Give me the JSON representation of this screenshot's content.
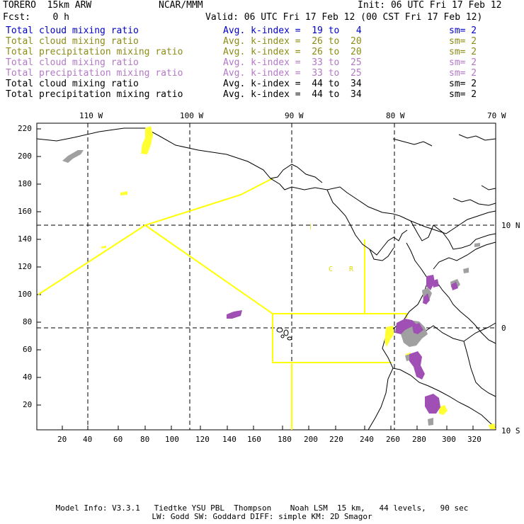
{
  "header": {
    "model": "TORERO  15km ARW",
    "center": "NCAR/MMM",
    "init": "Init: 06 UTC Fri 17 Feb 12",
    "fcst": "Fcst:    0 h",
    "valid": "Valid: 06 UTC Fri 17 Feb 12 (00 CST Fri 17 Feb 12)"
  },
  "legend": [
    {
      "field": "Total cloud mixing ratio",
      "kindex": "Avg. k-index =  19 to   4",
      "sm": "sm= 2",
      "color": "#0000c8"
    },
    {
      "field": "Total cloud mixing ratio",
      "kindex": "Avg. k-index =  26 to  20",
      "sm": "sm= 2",
      "color": "#8c8c14"
    },
    {
      "field": "Total precipitation mixing ratio",
      "kindex": "Avg. k-index =  26 to  20",
      "sm": "sm= 2",
      "color": "#8c8c14"
    },
    {
      "field": "Total cloud mixing ratio",
      "kindex": "Avg. k-index =  33 to  25",
      "sm": "sm= 2",
      "color": "#b478c8"
    },
    {
      "field": "Total precipitation mixing ratio",
      "kindex": "Avg. k-index =  33 to  25",
      "sm": "sm= 2",
      "color": "#b478c8"
    },
    {
      "field": "Total cloud mixing ratio",
      "kindex": "Avg. k-index =  44 to  34",
      "sm": "sm= 2",
      "color": "#000000"
    },
    {
      "field": "Total precipitation mixing ratio",
      "kindex": "Avg. k-index =  44 to  34",
      "sm": "sm= 2",
      "color": "#000000"
    }
  ],
  "axes": {
    "top_lon_labels": [
      "110 W",
      "100 W",
      "90 W",
      "80 W",
      "70 W"
    ],
    "right_lat_labels": [
      "10 N",
      "0",
      "10 S"
    ],
    "left_y_ticks": [
      "220",
      "200",
      "180",
      "160",
      "140",
      "120",
      "100",
      "80",
      "60",
      "40",
      "20"
    ],
    "bottom_x_ticks": [
      "20",
      "40",
      "60",
      "80",
      "100",
      "120",
      "140",
      "160",
      "180",
      "200",
      "220",
      "240",
      "260",
      "280",
      "300",
      "320"
    ]
  },
  "map_labels": {
    "country_code": "C",
    "country_code2": "R"
  },
  "colors": {
    "coast": "#000000",
    "boundary": "#ffff00",
    "precip_magenta": "#a050b4",
    "cloud_grey": "#a0a0a0",
    "precip_yellow": "#ffff32"
  },
  "footer": {
    "line1": "Model Info: V3.3.1   Tiedtke YSU PBL  Thompson    Noah LSM  15 km,   44 levels,   90 sec",
    "line2": "LW: Godd SW: Goddard DIFF: simple KM: 2D Smagor"
  }
}
